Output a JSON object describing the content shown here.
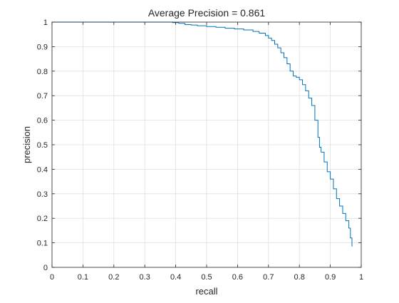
{
  "chart_data": {
    "type": "line",
    "title": "Average Precision = 0.861",
    "xlabel": "recall",
    "ylabel": "precision",
    "xlim": [
      0,
      1
    ],
    "ylim": [
      0,
      1
    ],
    "xticks": [
      "0",
      "0.1",
      "0.2",
      "0.3",
      "0.4",
      "0.5",
      "0.6",
      "0.7",
      "0.8",
      "0.9",
      "1"
    ],
    "yticks": [
      "0",
      "0.1",
      "0.2",
      "0.3",
      "0.4",
      "0.5",
      "0.6",
      "0.7",
      "0.8",
      "0.9",
      "1"
    ],
    "grid": true,
    "series": [
      {
        "color": "#0072BD",
        "x": [
          0.0,
          0.05,
          0.1,
          0.15,
          0.2,
          0.25,
          0.3,
          0.35,
          0.39,
          0.41,
          0.43,
          0.45,
          0.47,
          0.5,
          0.53,
          0.56,
          0.59,
          0.62,
          0.65,
          0.67,
          0.69,
          0.7,
          0.71,
          0.72,
          0.73,
          0.74,
          0.75,
          0.76,
          0.77,
          0.78,
          0.79,
          0.8,
          0.81,
          0.82,
          0.83,
          0.84,
          0.85,
          0.86,
          0.865,
          0.87,
          0.88,
          0.89,
          0.9,
          0.91,
          0.92,
          0.93,
          0.94,
          0.95,
          0.96,
          0.965,
          0.97
        ],
        "y": [
          1.0,
          1.0,
          1.0,
          1.0,
          1.0,
          1.0,
          1.0,
          1.0,
          0.998,
          0.995,
          0.99,
          0.988,
          0.985,
          0.982,
          0.979,
          0.975,
          0.972,
          0.968,
          0.962,
          0.955,
          0.945,
          0.935,
          0.925,
          0.91,
          0.895,
          0.875,
          0.855,
          0.83,
          0.8,
          0.78,
          0.775,
          0.765,
          0.745,
          0.72,
          0.69,
          0.66,
          0.6,
          0.53,
          0.49,
          0.47,
          0.43,
          0.39,
          0.36,
          0.32,
          0.28,
          0.25,
          0.22,
          0.19,
          0.16,
          0.12,
          0.085
        ]
      }
    ]
  }
}
